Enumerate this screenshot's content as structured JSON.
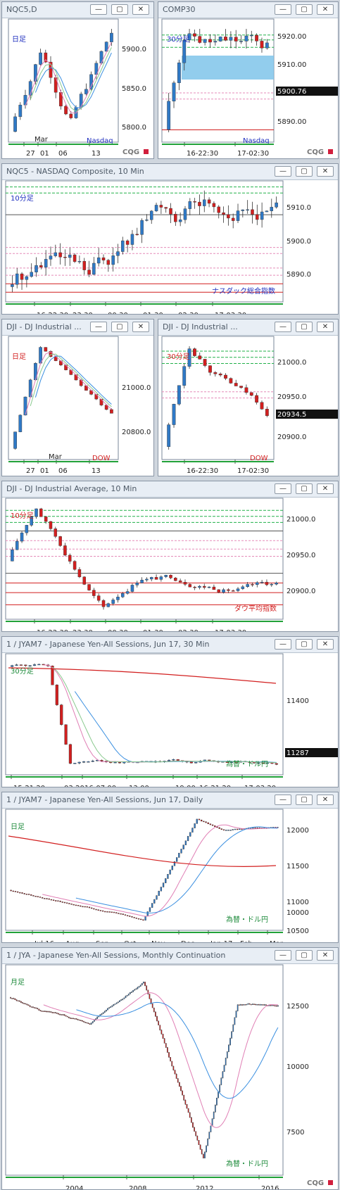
{
  "colors": {
    "up": "#2f79c6",
    "down": "#d21f1f",
    "border": "#7a8798",
    "axis_text": "#222222",
    "label_jp": "#1f2fbf",
    "label_red": "#d21f1f",
    "label_green": "#1c8a3a",
    "logo": "#777777",
    "logo_mark": "#d11f3d"
  },
  "icons": {
    "minimize": "minimize-icon",
    "restore": "restore-icon",
    "close": "close-icon"
  },
  "logo": "CQG",
  "panels": [
    {
      "id": "nqc5d",
      "title": "NQC5,D",
      "tf": "日足",
      "tf_color": "#1f2fbf",
      "symbol": "Nasdaq",
      "symbol_color": "#1f2fbf",
      "prices": [
        "5900.0",
        "5850.0",
        "5800.0"
      ],
      "dates": [
        "27",
        "01",
        "06",
        "13"
      ],
      "month": "Mar",
      "last": ""
    },
    {
      "id": "comp30",
      "title": "COMP30",
      "tf": "30分足",
      "tf_color": "#1f2fbf",
      "symbol": "Nasdaq",
      "symbol_color": "#1f2fbf",
      "prices": [
        "5920.00",
        "5910.00",
        "5900.76",
        "5890.00"
      ],
      "dates": [
        "16-22:30",
        "17-02:30"
      ],
      "month": "",
      "last": "5900.76"
    },
    {
      "id": "nqc510",
      "title": "NQC5 - NASDAQ Composite, 10 Min",
      "tf": "10分足",
      "tf_color": "#1f2fbf",
      "symbol": "ナスダック総合指数",
      "symbol_color": "#1f2fbf",
      "prices": [
        "5910.0",
        "5900.0",
        "5890.0"
      ],
      "dates": [
        "16-22:30",
        "23:30",
        "00:30",
        "01:30",
        "02:30",
        "17-03:30"
      ],
      "month": "",
      "last": ""
    },
    {
      "id": "djid",
      "title": "DJI - DJ Industrial ...",
      "tf": "日足",
      "tf_color": "#d21f1f",
      "symbol": "DOW",
      "symbol_color": "#d21f1f",
      "prices": [
        "21000.0",
        "20800.0"
      ],
      "dates": [
        "27",
        "01",
        "06",
        "13"
      ],
      "month": "Mar",
      "last": ""
    },
    {
      "id": "dji30",
      "title": "DJI - DJ Industrial ...",
      "tf": "30分足",
      "tf_color": "#d21f1f",
      "symbol": "DOW",
      "symbol_color": "#d21f1f",
      "prices": [
        "21000.0",
        "20950.0",
        "20934.5",
        "20900.0"
      ],
      "dates": [
        "16-22:30",
        "17-02:30"
      ],
      "month": "",
      "last": "20934.5"
    },
    {
      "id": "dji10",
      "title": "DJI - DJ Industrial Average, 10 Min",
      "tf": "10分足",
      "tf_color": "#d21f1f",
      "symbol": "ダウ平均指数",
      "symbol_color": "#d21f1f",
      "prices": [
        "21000.0",
        "20950.0",
        "20900.0"
      ],
      "dates": [
        "16-22:30",
        "23:30",
        "00:30",
        "01:30",
        "02:30",
        "17-03:30"
      ],
      "month": "",
      "last": ""
    },
    {
      "id": "jya30",
      "title": "1 / JYAM7 - Japanese Yen-All Sessions, Jun 17, 30 Min",
      "tf": "30分足",
      "tf_color": "#1c8a3a",
      "symbol": "為替・ドル円",
      "symbol_color": "#1c8a3a",
      "prices": [
        "11400",
        "11287"
      ],
      "dates": [
        "15-21:20",
        "03:20",
        "16-07:00",
        "13:00",
        "19:00",
        "16-21:20",
        "17-03:20"
      ],
      "month": "",
      "last": "11287"
    },
    {
      "id": "jyad",
      "title": "1 / JYAM7 - Japanese Yen-All Sessions, Jun 17, Daily",
      "tf": "日足",
      "tf_color": "#1c8a3a",
      "symbol": "為替・ドル円",
      "symbol_color": "#1c8a3a",
      "prices": [
        "12000",
        "11500",
        "11000",
        "10500",
        "10000"
      ],
      "dates": [
        "Jul 16",
        "Aug",
        "Sep",
        "Oct",
        "Nov",
        "Dec",
        "Jan 17",
        "Feb",
        "Mar"
      ],
      "month": "",
      "last": ""
    },
    {
      "id": "jyam",
      "title": "1 / JYA - Japanese Yen-All Sessions, Monthly Continuation",
      "tf": "月足",
      "tf_color": "#1c8a3a",
      "symbol": "為替・ドル円",
      "symbol_color": "#1c8a3a",
      "prices": [
        "12500",
        "10000",
        "7500"
      ],
      "dates": [
        "2004",
        "2008",
        "2012",
        "2016"
      ],
      "month": "",
      "last": ""
    }
  ]
}
